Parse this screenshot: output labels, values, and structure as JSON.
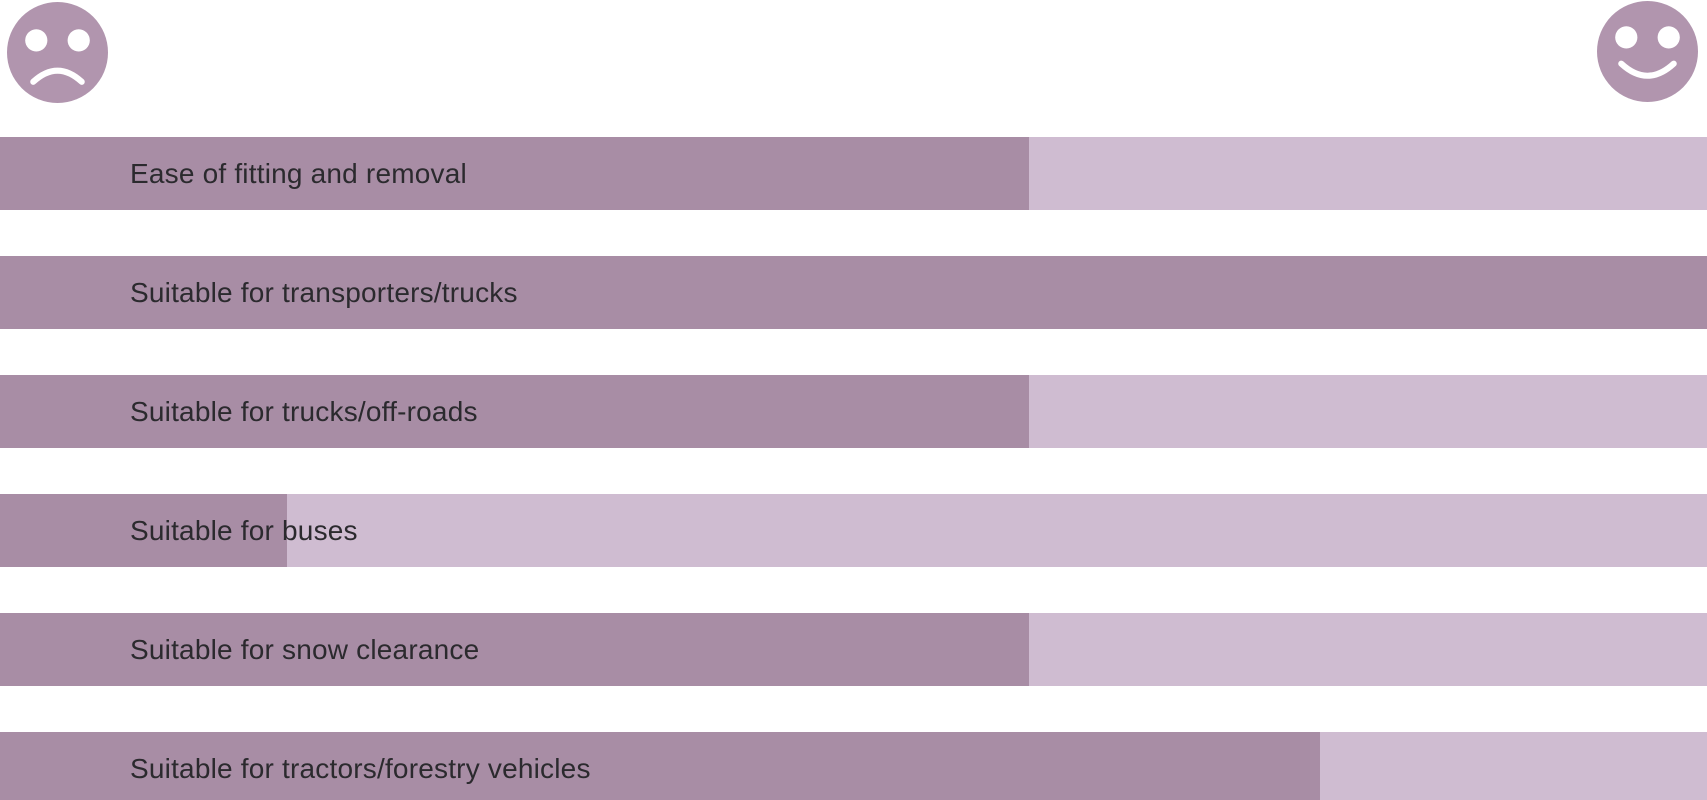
{
  "chart_data": {
    "type": "bar",
    "orientation": "horizontal",
    "title": "",
    "xlabel": "",
    "ylabel": "",
    "legend": "none",
    "grid": false,
    "value_scale": {
      "min": 0,
      "max": 1,
      "min_icon": "sad-face-icon",
      "max_icon": "happy-face-icon"
    },
    "categories": [
      "Ease of fitting and removal",
      "Suitable for transporters/trucks",
      "Suitable for trucks/off-roads",
      "Suitable for buses",
      "Suitable for snow clearance",
      "Suitable for tractors/forestry vehicles"
    ],
    "values": [
      0.603,
      1.0,
      0.603,
      0.168,
      0.603,
      0.773
    ],
    "colors": {
      "bar_fill": "#a88da5",
      "bar_track": "#cfbcd1",
      "face": "#b195ae",
      "label_text": "#2b2a2e",
      "background": "#ffffff"
    }
  }
}
